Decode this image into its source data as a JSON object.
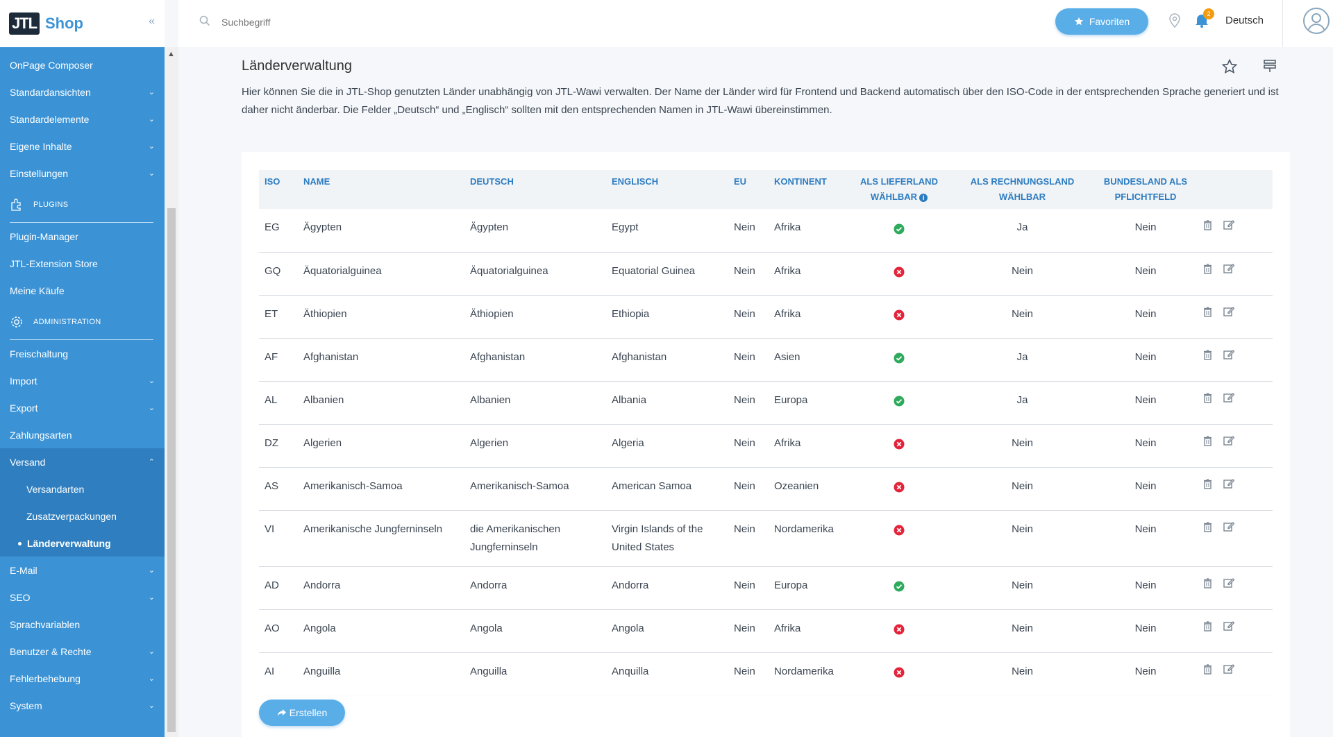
{
  "brand": {
    "logo_text": "JTL",
    "name": "Shop"
  },
  "sidebar": {
    "collapse_glyph": "«",
    "items_top": [
      {
        "label": "OnPage Composer",
        "chev": false
      },
      {
        "label": "Standardansichten",
        "chev": true
      },
      {
        "label": "Standardelemente",
        "chev": true
      },
      {
        "label": "Eigene Inhalte",
        "chev": true
      },
      {
        "label": "Einstellungen",
        "chev": true
      }
    ],
    "section_plugins": "Plugins",
    "items_plugins": [
      {
        "label": "Plugin-Manager"
      },
      {
        "label": "JTL-Extension Store"
      },
      {
        "label": "Meine Käufe"
      }
    ],
    "section_admin": "Administration",
    "items_admin": [
      {
        "label": "Freischaltung",
        "chev": false
      },
      {
        "label": "Import",
        "chev": true
      },
      {
        "label": "Export",
        "chev": true
      },
      {
        "label": "Zahlungsarten",
        "chev": false
      }
    ],
    "versand": {
      "label": "Versand",
      "sub": [
        "Versandarten",
        "Zusatzverpackungen"
      ],
      "current": "Länderverwaltung"
    },
    "items_bottom": [
      {
        "label": "E-Mail",
        "chev": true
      },
      {
        "label": "SEO",
        "chev": true
      },
      {
        "label": "Sprachvariablen",
        "chev": false
      },
      {
        "label": "Benutzer & Rechte",
        "chev": true
      },
      {
        "label": "Fehlerbehebung",
        "chev": true
      },
      {
        "label": "System",
        "chev": true
      }
    ]
  },
  "header": {
    "search_placeholder": "Suchbegriff",
    "favorites_label": "Favoriten",
    "notification_count": "2",
    "language": "Deutsch"
  },
  "page": {
    "title": "Länderverwaltung",
    "description": "Hier können Sie die in JTL-Shop genutzten Länder unabhängig von JTL-Wawi verwalten. Der Name der Länder wird für Frontend und Backend automatisch über den ISO-Code in der entsprechenden Sprache generiert und ist daher nicht änderbar. Die Felder „Deutsch“ und „Englisch“ sollten mit den entsprechenden Namen in JTL-Wawi übereinstimmen.",
    "create_label": "Erstellen"
  },
  "table": {
    "headers": {
      "iso": "ISO",
      "name": "Name",
      "deutsch": "Deutsch",
      "englisch": "Englisch",
      "eu": "EU",
      "kontinent": "Kontinent",
      "liefer": "Als Lieferland wählbar",
      "rechnung": "Als Rechnungsland wählbar",
      "bundesland": "Bundesland als Pflichtfeld"
    },
    "rows": [
      {
        "iso": "EG",
        "name": "Ägypten",
        "deutsch": "Ägypten",
        "englisch": "Egypt",
        "eu": "Nein",
        "kontinent": "Afrika",
        "liefer": true,
        "rechnung": "Ja",
        "bundesland": "Nein"
      },
      {
        "iso": "GQ",
        "name": "Äquatorialguinea",
        "deutsch": "Äquatorialguinea",
        "englisch": "Equatorial Guinea",
        "eu": "Nein",
        "kontinent": "Afrika",
        "liefer": false,
        "rechnung": "Nein",
        "bundesland": "Nein"
      },
      {
        "iso": "ET",
        "name": "Äthiopien",
        "deutsch": "Äthiopien",
        "englisch": "Ethiopia",
        "eu": "Nein",
        "kontinent": "Afrika",
        "liefer": false,
        "rechnung": "Nein",
        "bundesland": "Nein"
      },
      {
        "iso": "AF",
        "name": "Afghanistan",
        "deutsch": "Afghanistan",
        "englisch": "Afghanistan",
        "eu": "Nein",
        "kontinent": "Asien",
        "liefer": true,
        "rechnung": "Ja",
        "bundesland": "Nein"
      },
      {
        "iso": "AL",
        "name": "Albanien",
        "deutsch": "Albanien",
        "englisch": "Albania",
        "eu": "Nein",
        "kontinent": "Europa",
        "liefer": true,
        "rechnung": "Ja",
        "bundesland": "Nein"
      },
      {
        "iso": "DZ",
        "name": "Algerien",
        "deutsch": "Algerien",
        "englisch": "Algeria",
        "eu": "Nein",
        "kontinent": "Afrika",
        "liefer": false,
        "rechnung": "Nein",
        "bundesland": "Nein"
      },
      {
        "iso": "AS",
        "name": "Amerikanisch-Samoa",
        "deutsch": "Amerikanisch-Samoa",
        "englisch": "American Samoa",
        "eu": "Nein",
        "kontinent": "Ozeanien",
        "liefer": false,
        "rechnung": "Nein",
        "bundesland": "Nein"
      },
      {
        "iso": "VI",
        "name": "Amerikanische Jungferninseln",
        "deutsch": "die Amerikanischen Jungferninseln",
        "englisch": "Virgin Islands of the United States",
        "eu": "Nein",
        "kontinent": "Nordamerika",
        "liefer": false,
        "rechnung": "Nein",
        "bundesland": "Nein",
        "tall": true
      },
      {
        "iso": "AD",
        "name": "Andorra",
        "deutsch": "Andorra",
        "englisch": "Andorra",
        "eu": "Nein",
        "kontinent": "Europa",
        "liefer": true,
        "rechnung": "Nein",
        "bundesland": "Nein"
      },
      {
        "iso": "AO",
        "name": "Angola",
        "deutsch": "Angola",
        "englisch": "Angola",
        "eu": "Nein",
        "kontinent": "Afrika",
        "liefer": false,
        "rechnung": "Nein",
        "bundesland": "Nein"
      },
      {
        "iso": "AI",
        "name": "Anguilla",
        "deutsch": "Anguilla",
        "englisch": "Anquilla",
        "eu": "Nein",
        "kontinent": "Nordamerika",
        "liefer": false,
        "rechnung": "Nein",
        "bundesland": "Nein"
      }
    ]
  },
  "colors": {
    "accent": "#3b93d6",
    "ok": "#2eaa5c",
    "error": "#e3233a"
  }
}
